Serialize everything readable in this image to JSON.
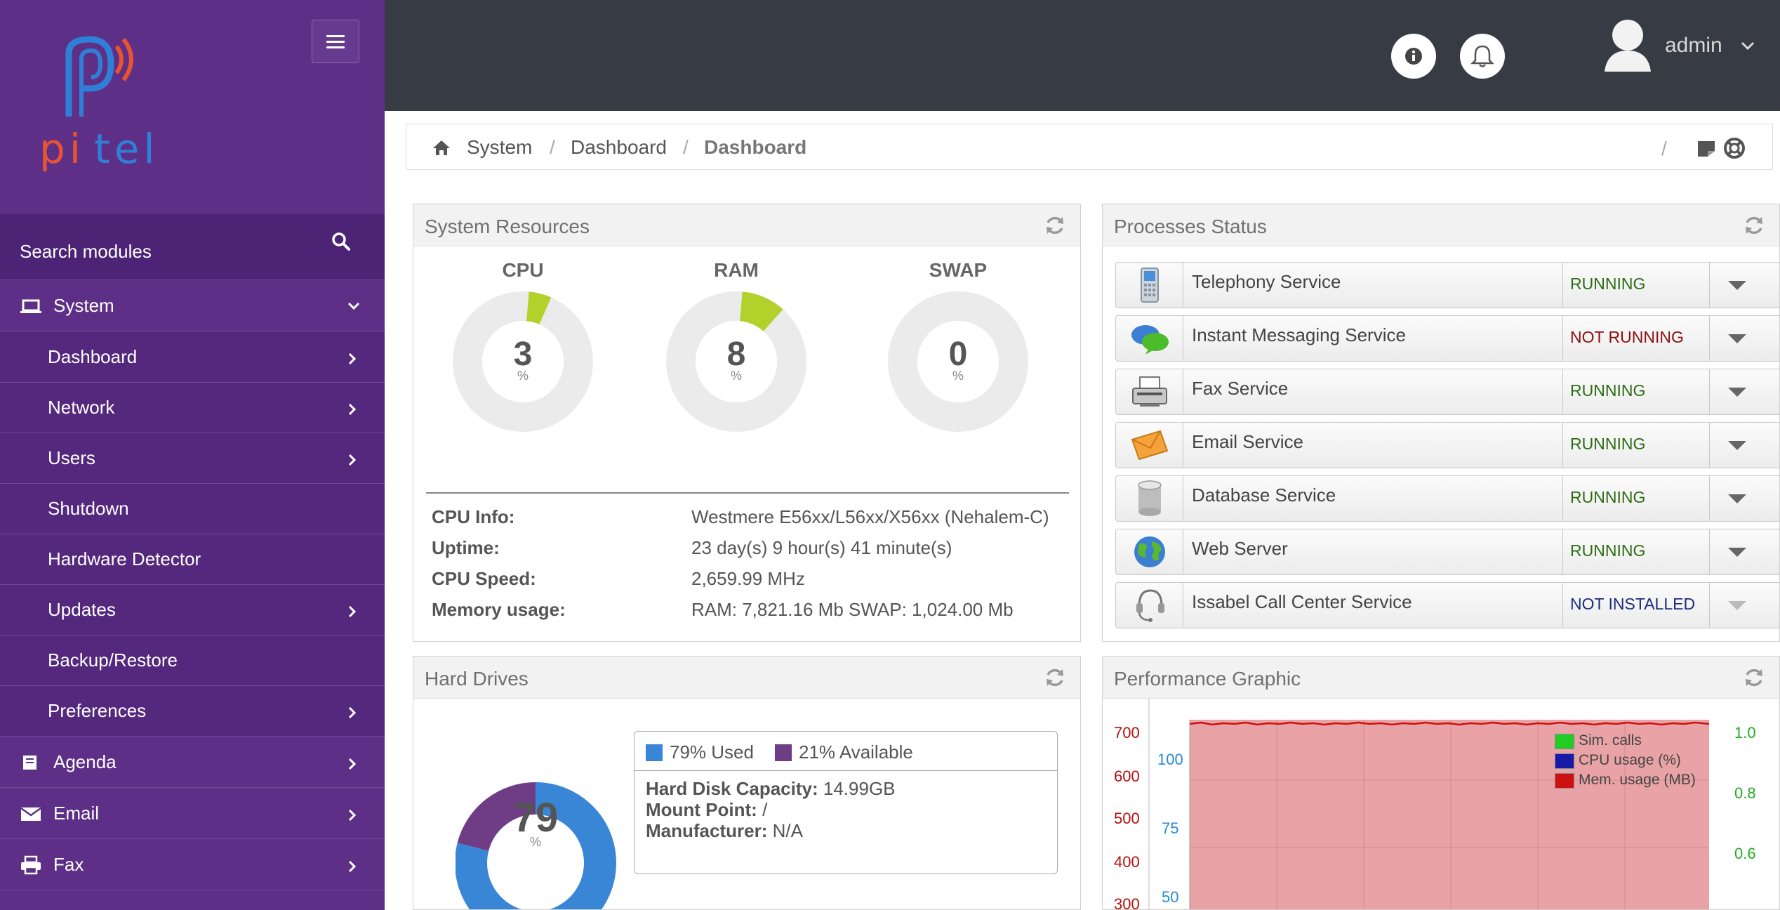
{
  "sidebar": {
    "logo_text": "pitel",
    "search_label": "Search modules",
    "items": [
      {
        "label": "System",
        "level": "top",
        "icon": "laptop-icon",
        "chevron": "down"
      },
      {
        "label": "Dashboard",
        "level": "sub",
        "chevron": "right"
      },
      {
        "label": "Network",
        "level": "sub",
        "chevron": "right"
      },
      {
        "label": "Users",
        "level": "sub",
        "chevron": "right"
      },
      {
        "label": "Shutdown",
        "level": "sub",
        "chevron": ""
      },
      {
        "label": "Hardware Detector",
        "level": "sub",
        "chevron": ""
      },
      {
        "label": "Updates",
        "level": "sub",
        "chevron": "right"
      },
      {
        "label": "Backup/Restore",
        "level": "sub",
        "chevron": ""
      },
      {
        "label": "Preferences",
        "level": "sub",
        "chevron": "right"
      },
      {
        "label": "Agenda",
        "level": "top",
        "icon": "book-icon",
        "chevron": "right"
      },
      {
        "label": "Email",
        "level": "top",
        "icon": "envelope-icon",
        "chevron": "right"
      },
      {
        "label": "Fax",
        "level": "top",
        "icon": "printer-icon",
        "chevron": "right"
      }
    ]
  },
  "topbar": {
    "user_label": "admin"
  },
  "breadcrumb": {
    "items": [
      "System",
      "Dashboard",
      "Dashboard"
    ],
    "separator": "/"
  },
  "system_resources": {
    "title": "System Resources",
    "gauges": [
      {
        "label": "CPU",
        "value": "3",
        "unit": "%",
        "fraction": 0.03
      },
      {
        "label": "RAM",
        "value": "8",
        "unit": "%",
        "fraction": 0.08
      },
      {
        "label": "SWAP",
        "value": "0",
        "unit": "%",
        "fraction": 0.0
      }
    ],
    "info": [
      {
        "key": "CPU Info:",
        "value": "Westmere E56xx/L56xx/X56xx (Nehalem-C)"
      },
      {
        "key": "Uptime:",
        "value": "23 day(s) 9 hour(s) 41 minute(s)"
      },
      {
        "key": "CPU Speed:",
        "value": "2,659.99 MHz"
      },
      {
        "key": "Memory usage:",
        "value": "RAM: 7,821.16 Mb SWAP: 1,024.00 Mb"
      }
    ]
  },
  "processes": {
    "title": "Processes Status",
    "items": [
      {
        "name": "Telephony Service",
        "status": "RUNNING",
        "state": "running",
        "icon": "phone-icon"
      },
      {
        "name": "Instant Messaging Service",
        "status": "NOT RUNNING",
        "state": "notrunning",
        "icon": "chat-bubbles-icon"
      },
      {
        "name": "Fax Service",
        "status": "RUNNING",
        "state": "running",
        "icon": "fax-machine-icon"
      },
      {
        "name": "Email Service",
        "status": "RUNNING",
        "state": "running",
        "icon": "envelope-icon"
      },
      {
        "name": "Database Service",
        "status": "RUNNING",
        "state": "running",
        "icon": "database-icon"
      },
      {
        "name": "Web Server",
        "status": "RUNNING",
        "state": "running",
        "icon": "globe-icon"
      },
      {
        "name": "Issabel Call Center Service",
        "status": "NOT INSTALLED",
        "state": "notinstalled",
        "icon": "headset-icon"
      }
    ]
  },
  "hard_drives": {
    "title": "Hard Drives",
    "used_value": "79",
    "used_unit": "%",
    "used_fraction": 0.79,
    "legend_used": "79% Used",
    "legend_available": "21% Available",
    "capacity_label": "Hard Disk Capacity:",
    "capacity_value": "14.99GB",
    "mount_label": "Mount Point:",
    "mount_value": "/",
    "manufacturer_label": "Manufacturer:",
    "manufacturer_value": "N/A",
    "colors": {
      "used": "#3a86d6",
      "available": "#6f3d85"
    }
  },
  "performance": {
    "title": "Performance Graphic",
    "left_axis_ticks": [
      "700",
      "600",
      "500",
      "400",
      "300"
    ],
    "inner_axis_ticks": [
      "100",
      "75",
      "50"
    ],
    "right_axis_ticks": [
      "1.0",
      "0.8",
      "0.6"
    ],
    "legend": [
      {
        "label": "Sim. calls",
        "color": "#22cc22"
      },
      {
        "label": "CPU usage (%)",
        "color": "#1a1aa8"
      },
      {
        "label": "Mem. usage (MB)",
        "color": "#cc1111"
      }
    ]
  }
}
